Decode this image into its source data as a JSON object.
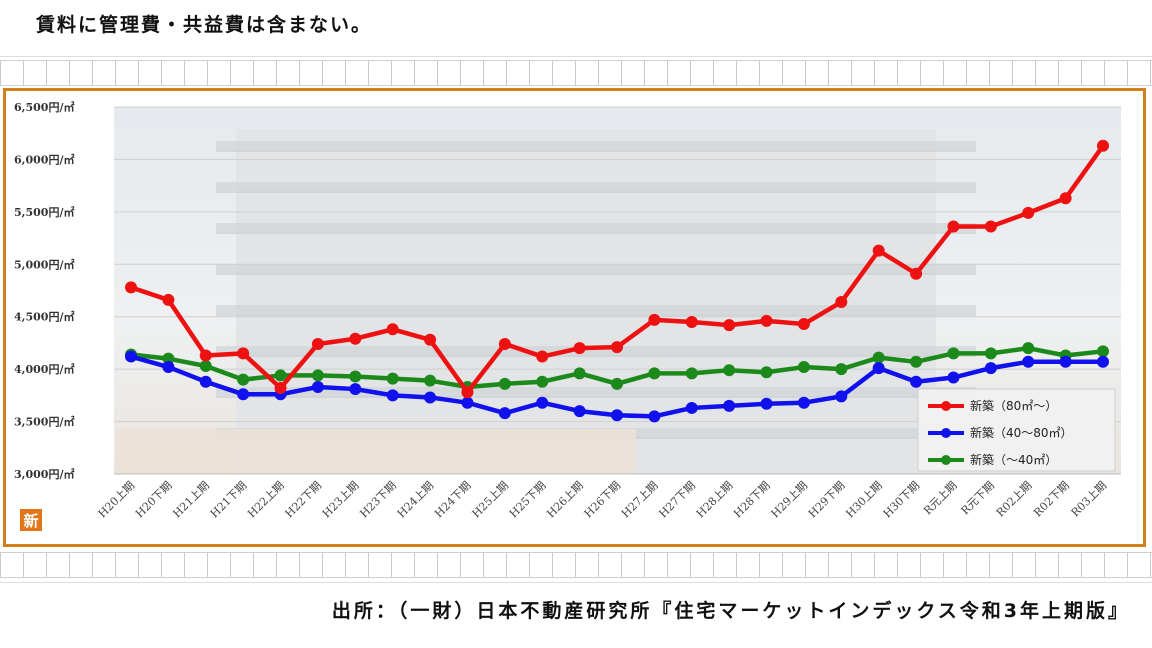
{
  "note": "賃料に管理費・共益費は含まない。",
  "source": "出所：（一財）日本不動産研究所『住宅マーケットインデックス令和3年上期版』",
  "logo_text": "新",
  "chart_data": {
    "type": "line",
    "categories": [
      "H20上期",
      "H20下期",
      "H21上期",
      "H21下期",
      "H22上期",
      "H22下期",
      "H23上期",
      "H23下期",
      "H24上期",
      "H24下期",
      "H25上期",
      "H25下期",
      "H26上期",
      "H26下期",
      "H27上期",
      "H27下期",
      "H28上期",
      "H28下期",
      "H29上期",
      "H29下期",
      "H30上期",
      "H30下期",
      "R元上期",
      "R元下期",
      "R02上期",
      "R02下期",
      "R03上期"
    ],
    "y_ticks": [
      3000,
      3500,
      4000,
      4500,
      5000,
      5500,
      6000,
      6500
    ],
    "y_tick_labels": [
      "3,000円/㎡",
      "3,500円/㎡",
      "4,000円/㎡",
      "4,500円/㎡",
      "5,000円/㎡",
      "5,500円/㎡",
      "6,000円/㎡",
      "6,500円/㎡"
    ],
    "ylim": [
      3000,
      6500
    ],
    "grid": true,
    "legend_position": "bottom-right",
    "series": [
      {
        "name": "新築（80㎡～）",
        "color": "#ee1111",
        "values": [
          4780,
          4660,
          4130,
          4150,
          3820,
          4240,
          4290,
          4380,
          4280,
          3780,
          4240,
          4120,
          4200,
          4210,
          4470,
          4450,
          4420,
          4460,
          4430,
          4640,
          5130,
          4910,
          5360,
          5360,
          5490,
          5630,
          6130
        ]
      },
      {
        "name": "新築（40～80㎡）",
        "color": "#1111ee",
        "values": [
          4120,
          4020,
          3880,
          3760,
          3760,
          3830,
          3810,
          3750,
          3730,
          3680,
          3580,
          3680,
          3600,
          3560,
          3550,
          3630,
          3650,
          3670,
          3680,
          3740,
          4010,
          3880,
          3920,
          4010,
          4070,
          4070,
          4070
        ]
      },
      {
        "name": "新築（～40㎡）",
        "color": "#1b8a1b",
        "values": [
          4140,
          4100,
          4030,
          3900,
          3940,
          3940,
          3930,
          3910,
          3890,
          3830,
          3860,
          3880,
          3960,
          3860,
          3960,
          3960,
          3990,
          3970,
          4020,
          4000,
          4110,
          4070,
          4150,
          4150,
          4200,
          4130,
          4170
        ]
      }
    ]
  }
}
